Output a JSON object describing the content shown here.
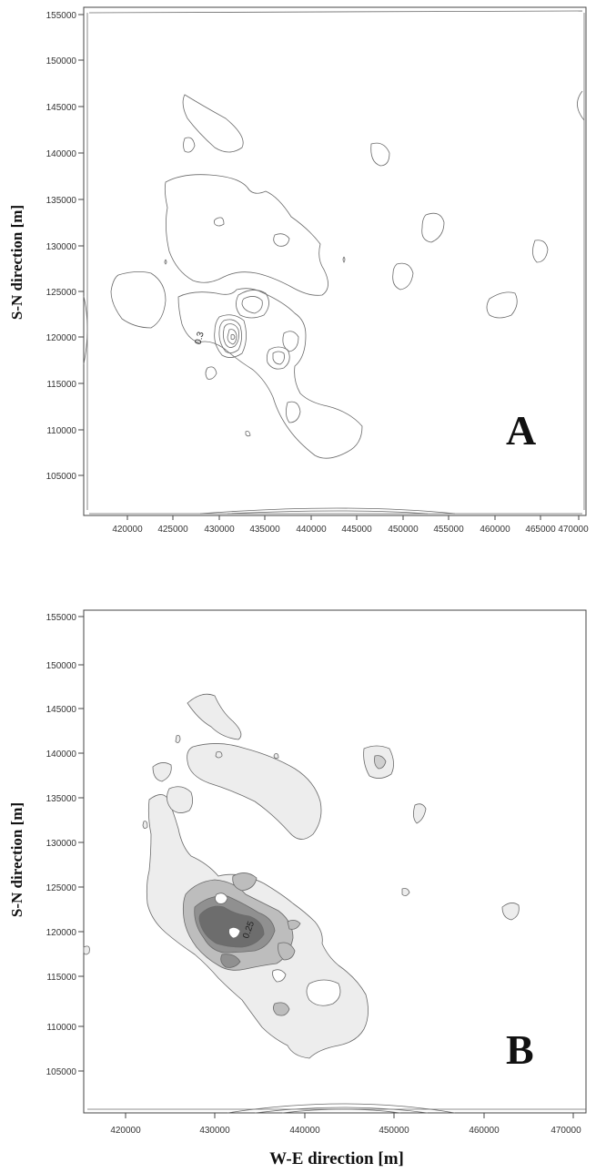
{
  "panels": [
    {
      "letter": "A",
      "ylabel": "S-N direction [m]",
      "yticks": [
        "155000",
        "150000",
        "145000",
        "140000",
        "135000",
        "130000",
        "125000",
        "120000",
        "115000",
        "110000",
        "105000"
      ],
      "xticks": [
        "420000",
        "425000",
        "430000",
        "435000",
        "440000",
        "445000",
        "450000",
        "455000",
        "460000",
        "465000",
        "470000"
      ],
      "contour_label": "0.3"
    },
    {
      "letter": "B",
      "ylabel": "S-N direction [m]",
      "yticks": [
        "155000",
        "150000",
        "145000",
        "140000",
        "135000",
        "130000",
        "125000",
        "120000",
        "115000",
        "110000",
        "105000"
      ],
      "xticks": [
        "420000",
        "430000",
        "440000",
        "450000",
        "460000",
        "470000"
      ],
      "contour_label": "0.25",
      "xlabel": "W-E direction [m]"
    }
  ]
}
